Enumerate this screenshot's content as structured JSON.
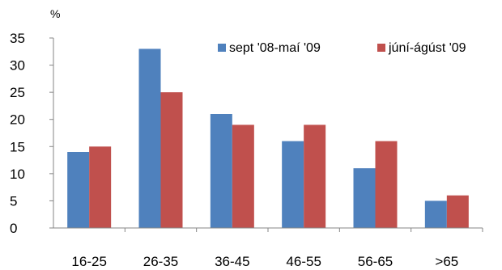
{
  "chart_data": {
    "type": "bar",
    "ylabel": "%",
    "ylim": [
      0,
      35
    ],
    "yticks": [
      0,
      5,
      10,
      15,
      20,
      25,
      30,
      35
    ],
    "categories": [
      "16-25",
      "26-35",
      "36-45",
      "46-55",
      "56-65",
      ">65"
    ],
    "series": [
      {
        "name": "sept '08-maí '09",
        "color": "#4f81bd",
        "values": [
          14,
          33,
          21,
          16,
          11,
          5
        ]
      },
      {
        "name": "júní-ágúst '09",
        "color": "#c0504d",
        "values": [
          15,
          25,
          19,
          19,
          16,
          6
        ]
      }
    ],
    "legend": "top-right",
    "grid": false
  }
}
